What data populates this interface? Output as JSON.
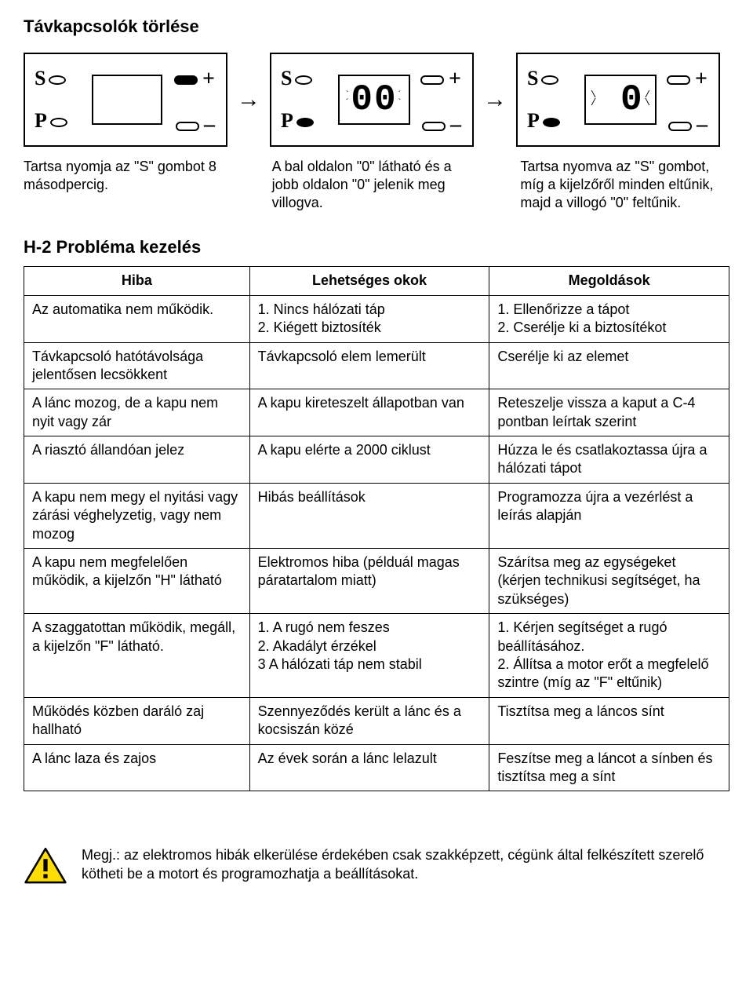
{
  "title": "Távkapcsolók törlése",
  "panels": {
    "s_label": "S",
    "p_label": "P",
    "plus": "+",
    "minus": "–",
    "display_mid": "00",
    "display_right": "0"
  },
  "captions": {
    "c1": "Tartsa nyomja az \"S\" gombot 8 másodpercig.",
    "c2": "A bal oldalon \"0\" látható és a jobb oldalon \"0\" jelenik meg villogva.",
    "c3": "Tartsa nyomva az \"S\" gombot, míg a kijelzőről minden eltűnik, majd a villogó \"0\" feltűnik."
  },
  "section2_title": "H-2 Probléma kezelés",
  "table": {
    "headers": [
      "Hiba",
      "Lehetséges okok",
      "Megoldások"
    ],
    "rows": [
      [
        "Az automatika nem működik.",
        "1. Nincs hálózati táp\n2. Kiégett biztosíték",
        "1. Ellenőrizze a tápot\n2. Cserélje ki a biztosítékot"
      ],
      [
        "Távkapcsoló hatótávolsága jelentősen lecsökkent",
        "Távkapcsoló elem lemerült",
        "Cserélje ki az elemet"
      ],
      [
        "A lánc mozog, de a kapu nem nyit vagy zár",
        "A kapu kireteszelt állapotban van",
        "Reteszelje vissza a kaput a C-4 pontban leírtak szerint"
      ],
      [
        "A riasztó állandóan jelez",
        "A kapu elérte a 2000 ciklust",
        "Húzza le és csatlakoztassa újra a hálózati tápot"
      ],
      [
        "A kapu nem megy el nyitási vagy zárási véghelyzetig, vagy nem mozog",
        "Hibás beállítások",
        "Programozza újra a vezérlést a leírás alapján"
      ],
      [
        "A kapu nem megfelelően működik, a kijelzőn \"H\" látható",
        "Elektromos hiba (példuál magas páratartalom miatt)",
        "Szárítsa meg az egységeket (kérjen technikusi segítséget, ha szükséges)"
      ],
      [
        "A szaggatottan működik, megáll, a kijelzőn \"F\" látható.",
        "1. A rugó nem feszes\n2. Akadályt érzékel\n3 A hálózati táp nem stabil",
        "1. Kérjen segítséget a rugó beállításához.\n2. Állítsa a motor erőt a megfelelő szintre (míg az \"F\" eltűnik)"
      ],
      [
        "Működés közben daráló zaj hallható",
        "Szennyeződés került a lánc és a kocsiszán közé",
        "Tisztítsa meg a láncos sínt"
      ],
      [
        "A lánc laza és zajos",
        "Az évek során a lánc lelazult",
        "Feszítse meg a láncot a sínben és tisztítsa meg a sínt"
      ]
    ]
  },
  "note": "Megj.: az elektromos hibák elkerülése érdekében csak szakképzett, cégünk által felkészített szerelő kötheti be a motort és programozhatja a beállításokat.",
  "colors": {
    "warn_fill": "#ffdd00",
    "warn_stroke": "#000000"
  }
}
